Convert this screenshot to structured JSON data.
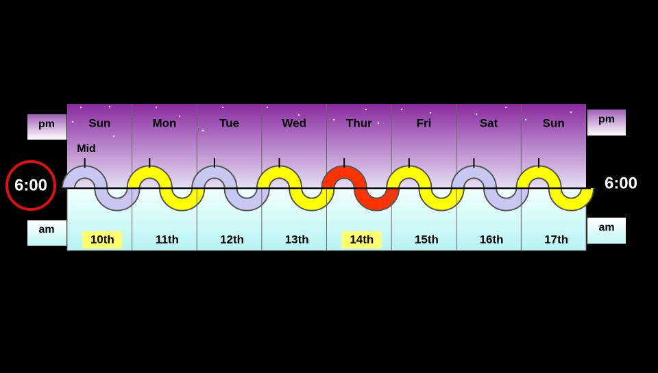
{
  "left": {
    "pm": "pm",
    "am": "am",
    "time": "6:00"
  },
  "right": {
    "pm": "pm",
    "am": "am",
    "time": "6:00"
  },
  "midnight_label": "Mid",
  "days": [
    {
      "day": "Sun",
      "date": "10th",
      "color": "#c8c8f2",
      "highlighted": true
    },
    {
      "day": "Mon",
      "date": "11th",
      "color": "#ffff00",
      "highlighted": false
    },
    {
      "day": "Tue",
      "date": "12th",
      "color": "#c8c8f2",
      "highlighted": false
    },
    {
      "day": "Wed",
      "date": "13th",
      "color": "#ffff00",
      "highlighted": false
    },
    {
      "day": "Thur",
      "date": "14th",
      "color": "#ff3300",
      "highlighted": true
    },
    {
      "day": "Fri",
      "date": "15th",
      "color": "#ffff00",
      "highlighted": false
    },
    {
      "day": "Sat",
      "date": "16th",
      "color": "#c8c8f2",
      "highlighted": false
    },
    {
      "day": "Sun",
      "date": "17th",
      "color": "#ffff00",
      "highlighted": false
    }
  ]
}
